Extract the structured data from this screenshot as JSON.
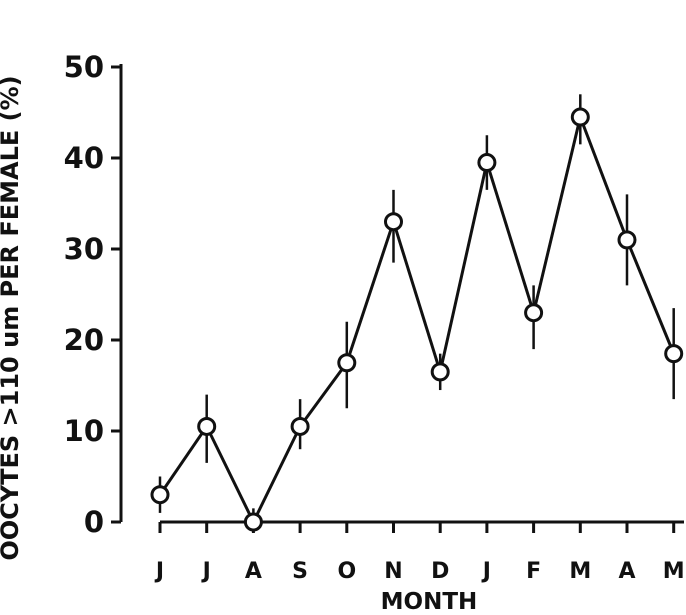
{
  "chart_data": {
    "type": "line",
    "title": "",
    "xlabel": "MONTH",
    "ylabel": "OOCYTES >110 um PER FEMALE (%)",
    "categories": [
      "J",
      "J",
      "A",
      "S",
      "O",
      "N",
      "D",
      "J",
      "F",
      "M",
      "A",
      "M"
    ],
    "series": [
      {
        "values": [
          3,
          10.5,
          0,
          10.5,
          17.5,
          33,
          16.5,
          39.5,
          23,
          44.5,
          31,
          18.5
        ],
        "error_low": [
          1,
          6.5,
          0,
          8,
          12.5,
          28.5,
          14.5,
          36.5,
          19,
          41.5,
          26,
          13.5
        ],
        "error_high": [
          5,
          14,
          1.5,
          13.5,
          22,
          36.5,
          18.5,
          42.5,
          26,
          47,
          36,
          23.5
        ]
      }
    ],
    "yticks": [
      "0",
      "10",
      "20",
      "30",
      "40",
      "50"
    ],
    "ytick_values": [
      0,
      10,
      20,
      30,
      40,
      50
    ],
    "ylim": [
      0,
      50
    ],
    "grid": false,
    "marker": "open-circle",
    "colors": {
      "ink": "#111111",
      "background": "#ffffff"
    }
  }
}
